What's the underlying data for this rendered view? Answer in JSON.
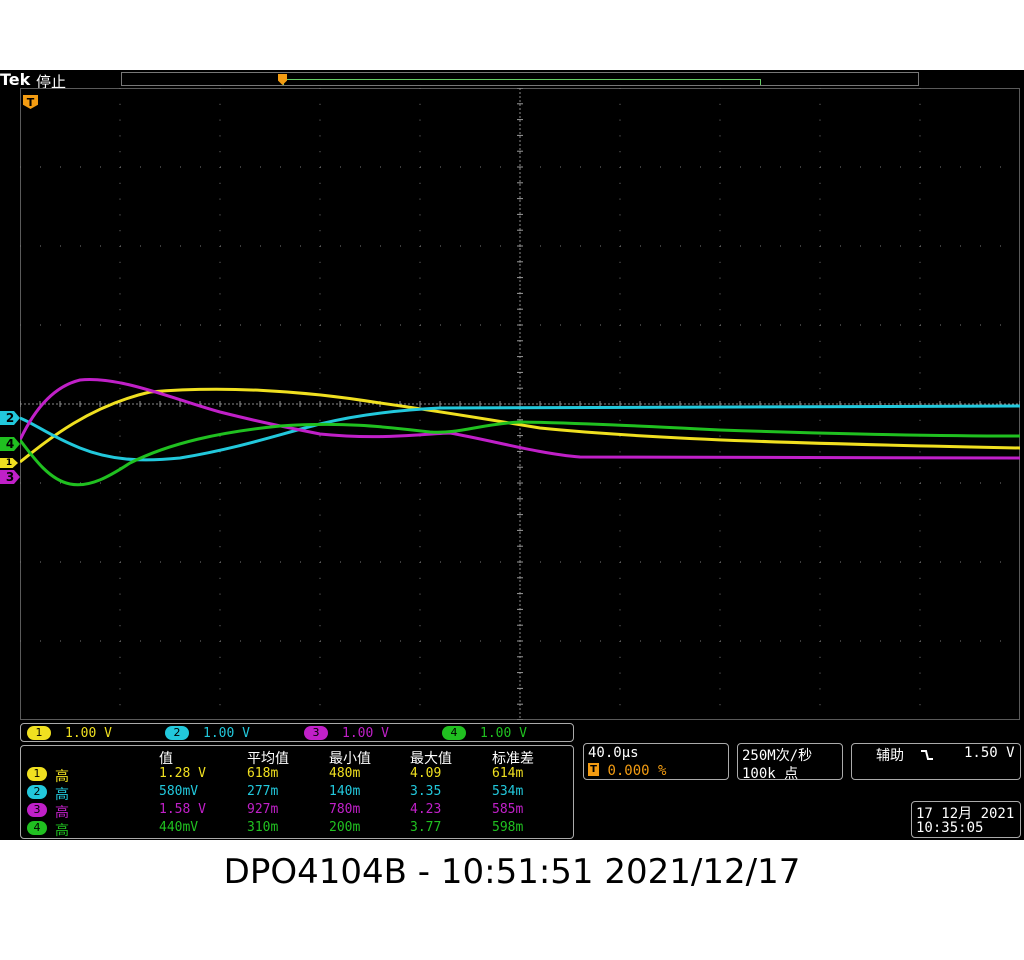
{
  "top_bar": {
    "logo": "Tek",
    "state": "停止"
  },
  "trigger_marker": "T",
  "channels": [
    {
      "id": "1",
      "color": "#f0e020",
      "scale": "1.00 V"
    },
    {
      "id": "2",
      "color": "#22c8dc",
      "scale": "1.00 V"
    },
    {
      "id": "3",
      "color": "#c020c8",
      "scale": "1.00 V"
    },
    {
      "id": "4",
      "color": "#20c020",
      "scale": "1.00 V"
    }
  ],
  "measurements": {
    "headers": [
      "值",
      "平均值",
      "最小值",
      "最大值",
      "标准差"
    ],
    "rows": [
      {
        "ch": "1",
        "label": "高",
        "value": "1.28 V",
        "mean": "618m",
        "min": "480m",
        "max": "4.09",
        "std": "614m"
      },
      {
        "ch": "2",
        "label": "高",
        "value": "580mV",
        "mean": "277m",
        "min": "140m",
        "max": "3.35",
        "std": "534m"
      },
      {
        "ch": "3",
        "label": "高",
        "value": "1.58 V",
        "mean": "927m",
        "min": "780m",
        "max": "4.23",
        "std": "585m"
      },
      {
        "ch": "4",
        "label": "高",
        "value": "440mV",
        "mean": "310m",
        "min": "200m",
        "max": "3.77",
        "std": "598m"
      }
    ]
  },
  "timebase": {
    "scale": "40.0μs",
    "trigger_position": "0.000 %",
    "trigger_chip": "T"
  },
  "acquisition": {
    "sample_rate": "250M次/秒",
    "record_length": "100k 点"
  },
  "trigger": {
    "source": "辅助",
    "slope_icon": "falling-edge-icon",
    "level": "1.50 V"
  },
  "datetime": {
    "date": "17 12月 2021",
    "time": "10:35:05"
  },
  "caption": "DPO4104B - 10:51:51   2021/12/17"
}
